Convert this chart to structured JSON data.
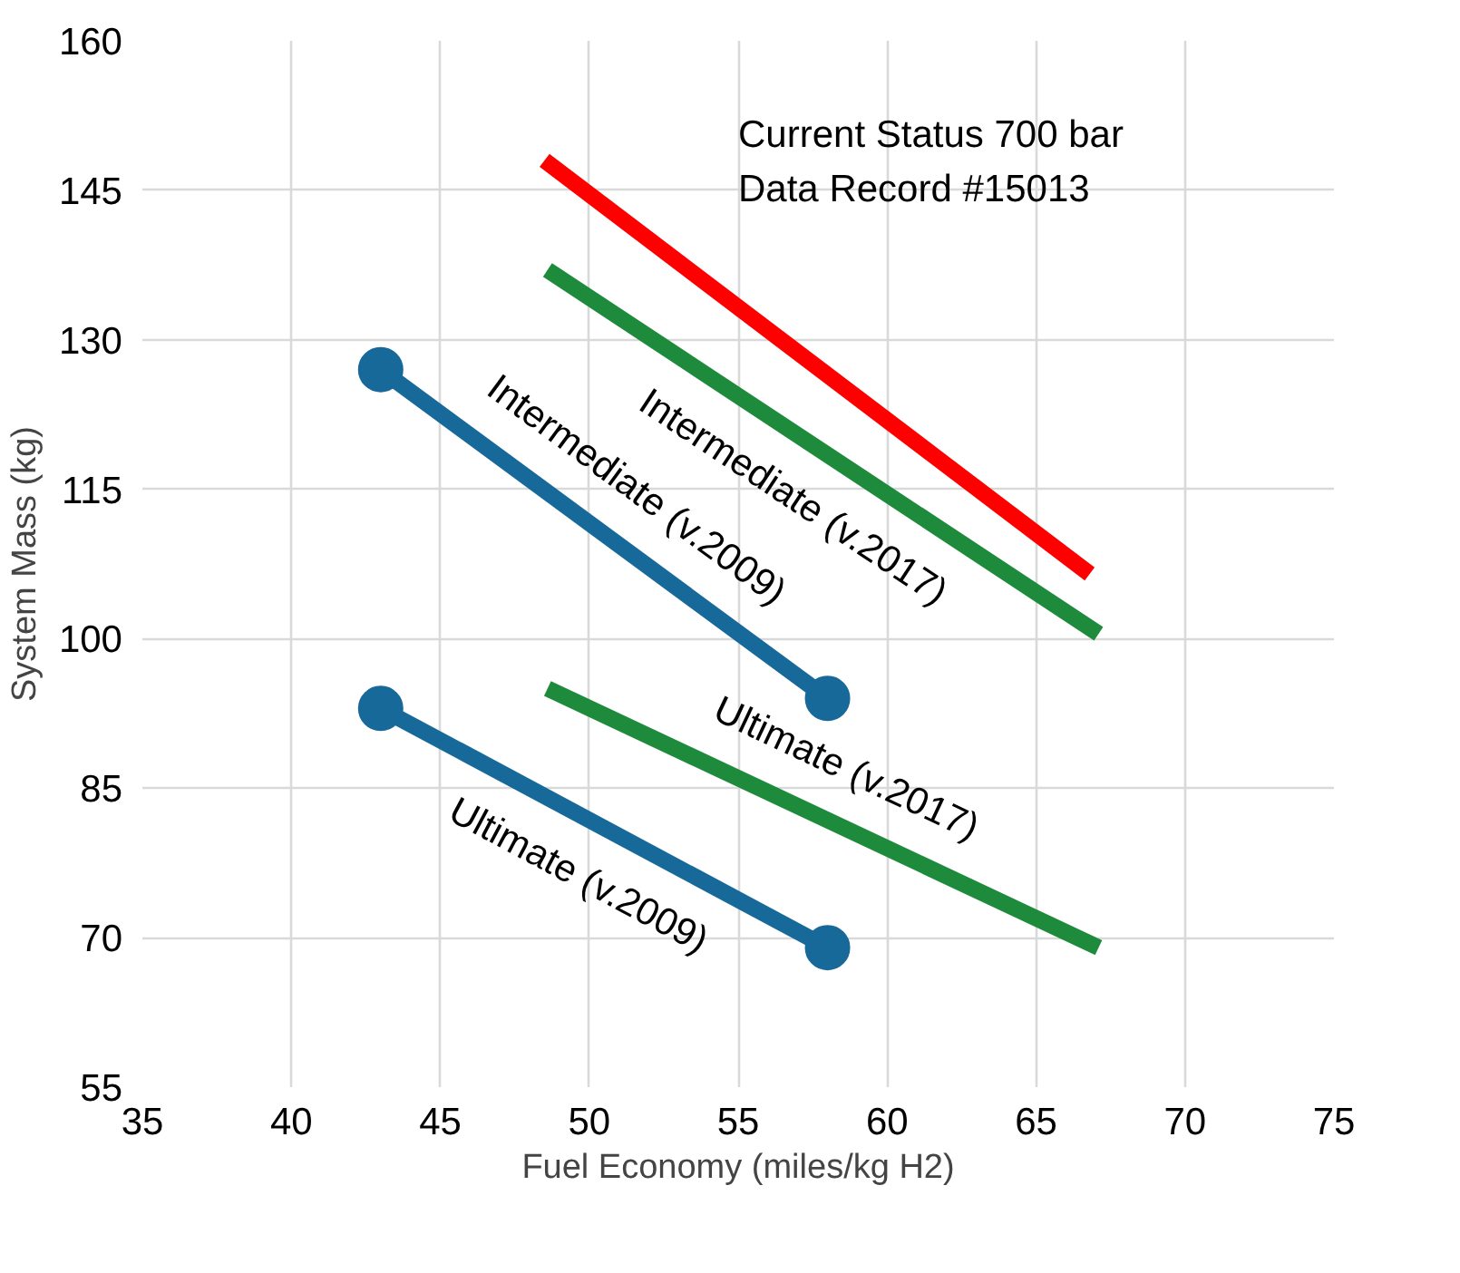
{
  "chart_data": {
    "type": "line",
    "xlabel": "Fuel Economy (miles/kg H2)",
    "ylabel": "System Mass (kg)",
    "xlim": [
      35,
      75
    ],
    "xticks": [
      35,
      40,
      45,
      50,
      55,
      60,
      65,
      70,
      75
    ],
    "ylim": [
      55,
      160
    ],
    "yticks": [
      55,
      70,
      85,
      100,
      115,
      130,
      145,
      160
    ],
    "grid": true,
    "line_style": "solid",
    "annotations": [
      "Current Status 700 bar\nData Record #15013"
    ],
    "series": [
      {
        "color": "#ff0000",
        "x": [
          48.5,
          66.8
        ],
        "values": [
          148,
          106.5
        ],
        "marker": "none"
      },
      {
        "name": "Intermediate (v.2017)",
        "color": "#1e8a3c",
        "x": [
          48.6,
          67.1
        ],
        "values": [
          137,
          100.5
        ],
        "marker": "none"
      },
      {
        "name": "Intermediate (v.2009)",
        "color": "#17699a",
        "x": [
          43,
          58
        ],
        "values": [
          127,
          94
        ],
        "marker": "circle"
      },
      {
        "name": "Ultimate (v.2017)",
        "color": "#1e8a3c",
        "x": [
          48.6,
          67.1
        ],
        "values": [
          95,
          69
        ],
        "marker": "none"
      },
      {
        "name": "Ultimate (v.2009)",
        "color": "#17699a",
        "x": [
          43,
          58
        ],
        "values": [
          93,
          69
        ],
        "marker": "circle"
      }
    ]
  }
}
